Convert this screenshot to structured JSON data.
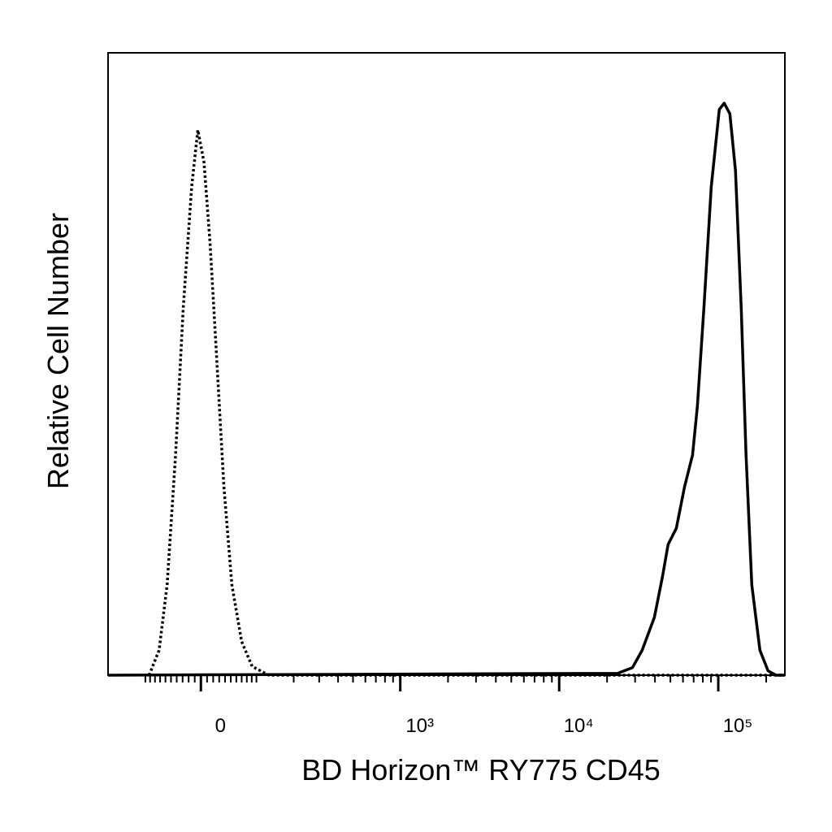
{
  "chart_data": {
    "type": "histogram-overlay",
    "xlabel": "BD Horizon™ RY775 CD45",
    "ylabel": "Relative Cell Number",
    "xscale": "biexponential",
    "xlim": [
      -200,
      262144
    ],
    "ylim": [
      0,
      100
    ],
    "xticks": [
      0,
      {
        "value": 1000,
        "label": "10³"
      },
      {
        "value": 10000,
        "label": "10⁴"
      },
      {
        "value": 100000,
        "label": "10⁵"
      }
    ],
    "xminorticks": [
      -100,
      -90,
      -80,
      -70,
      -60,
      -50,
      -40,
      -30,
      -20,
      -10,
      10,
      20,
      30,
      40,
      50,
      60,
      70,
      80,
      90,
      100,
      200,
      300,
      400,
      500,
      600,
      700,
      800,
      900,
      2000,
      3000,
      4000,
      5000,
      6000,
      7000,
      8000,
      9000,
      20000,
      30000,
      40000,
      50000,
      60000,
      70000,
      80000,
      90000,
      200000
    ],
    "series": [
      {
        "color": "#000000",
        "linestyle": "dotted",
        "x": [
          -92,
          -72,
          -57,
          -42,
          -29,
          -15,
          -5,
          5,
          15,
          25,
          38,
          52,
          70,
          91,
          129,
          262144
        ],
        "values": [
          0,
          4.0,
          14.5,
          35.4,
          58.9,
          78.5,
          87.6,
          82.4,
          69.3,
          52.3,
          30.2,
          14.5,
          5.4,
          1.4,
          0,
          0
        ]
      },
      {
        "color": "#000000",
        "linestyle": "solid",
        "x": [
          -200,
          23350,
          28840,
          33200,
          39650,
          44580,
          48400,
          54500,
          61300,
          68900,
          73900,
          81200,
          90300,
          101500,
          108900,
          118300,
          128300,
          139400,
          149500,
          162400,
          182700,
          205400,
          231000,
          262144
        ],
        "values": [
          0,
          0.3,
          1.2,
          4.0,
          9.3,
          15.8,
          21.0,
          23.6,
          30.2,
          35.4,
          43.2,
          58.9,
          78.5,
          90.9,
          91.9,
          90.2,
          81.1,
          58.9,
          35.4,
          14.5,
          4.0,
          0.7,
          0,
          0
        ]
      }
    ]
  }
}
